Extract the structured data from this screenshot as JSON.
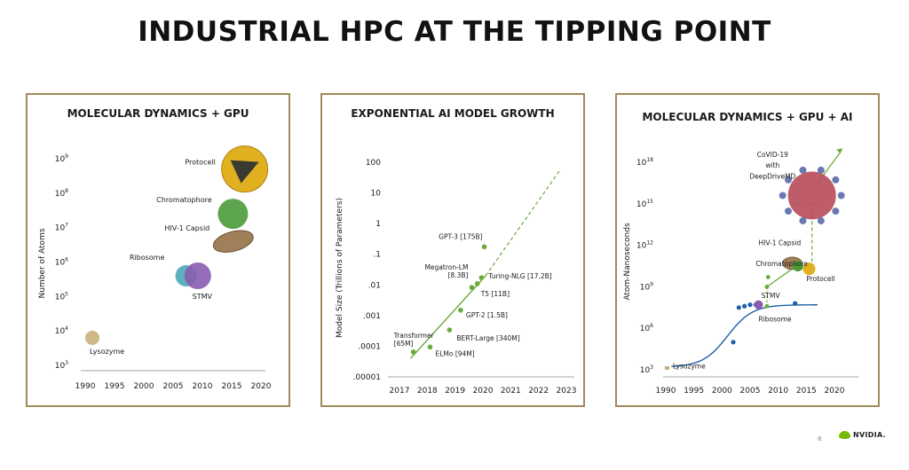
{
  "slide": {
    "title": "INDUSTRIAL HPC AT THE TIPPING POINT",
    "page_number": "8",
    "logo_text": "NVIDIA.",
    "accent_color": "#76b900",
    "border_color": "#a08a5c"
  },
  "chart_data": [
    {
      "type": "scatter",
      "title": "MOLECULAR DYNAMICS + GPU",
      "ylabel": "Number of Atoms",
      "xlabel": "",
      "scale_y": "log",
      "x_ticks": [
        "1990",
        "1995",
        "2000",
        "2005",
        "2010",
        "2015",
        "2020"
      ],
      "y_ticks": [
        {
          "base": "10",
          "exp": "3"
        },
        {
          "base": "10",
          "exp": "4"
        },
        {
          "base": "10",
          "exp": "5"
        },
        {
          "base": "10",
          "exp": "6"
        },
        {
          "base": "10",
          "exp": "7"
        },
        {
          "base": "10",
          "exp": "8"
        },
        {
          "base": "10",
          "exp": "9"
        }
      ],
      "xlim": [
        1990,
        2020
      ],
      "ylim_exp": [
        3,
        9
      ],
      "points": [
        {
          "label": "Lysozyme",
          "x": 1990,
          "y_exp": 3.8,
          "color": "#c9b07a"
        },
        {
          "label": "Ribosome",
          "x": 2006,
          "y_exp": 5.6,
          "color": "#4aa8b8"
        },
        {
          "label": "STMV",
          "x": 2008,
          "y_exp": 5.6,
          "color": "#8a5cb0"
        },
        {
          "label": "HIV-1 Capsid",
          "x": 2013,
          "y_exp": 6.6,
          "color": "#a0805a"
        },
        {
          "label": "Chromatophore",
          "x": 2014,
          "y_exp": 7.4,
          "color": "#4a9a3a"
        },
        {
          "label": "Protocell",
          "x": 2016,
          "y_exp": 8.7,
          "color": "#e0b020"
        }
      ]
    },
    {
      "type": "scatter",
      "title": "EXPONENTIAL AI MODEL GROWTH",
      "ylabel": "Model Size (Trillions of Parameters)",
      "xlabel": "",
      "scale_y": "log",
      "x_ticks": [
        "2017",
        "2018",
        "2019",
        "2020",
        "2021",
        "2022",
        "2023"
      ],
      "y_ticks": [
        ".00001",
        ".0001",
        ".001",
        ".01",
        ".1",
        "1",
        "10",
        "100"
      ],
      "xlim": [
        2017,
        2023
      ],
      "ylim": [
        1e-05,
        100
      ],
      "points": [
        {
          "label": "Transformer [65M]",
          "x": 2017.5,
          "y": 6.5e-05
        },
        {
          "label": "ELMo [94M]",
          "x": 2018.1,
          "y": 9.4e-05
        },
        {
          "label": "BERT-Large [340M]",
          "x": 2018.8,
          "y": 0.00034
        },
        {
          "label": "GPT-2 [1.5B]",
          "x": 2019.2,
          "y": 0.0015
        },
        {
          "label": "Megatron-LM [8.3B]",
          "x": 2019.6,
          "y": 0.0083
        },
        {
          "label": "T5 [11B]",
          "x": 2019.8,
          "y": 0.011
        },
        {
          "label": "Turing-NLG [17.2B]",
          "x": 2019.95,
          "y": 0.0172
        },
        {
          "label": "GPT-3 [175B]",
          "x": 2020.05,
          "y": 0.175
        }
      ],
      "trend": {
        "solid_from": [
          2017.4,
          4e-05
        ],
        "solid_to": [
          2020.1,
          0.02
        ],
        "dashed_to": [
          2022.8,
          60
        ]
      },
      "color": "#6aaa3a"
    },
    {
      "type": "line",
      "title": "MOLECULAR DYNAMICS + GPU + AI",
      "ylabel": "Atom-Nanoseconds",
      "xlabel": "",
      "scale_y": "log",
      "x_ticks": [
        "1990",
        "1995",
        "2000",
        "2005",
        "2010",
        "2015",
        "2020"
      ],
      "y_ticks": [
        {
          "base": "10",
          "exp": "3"
        },
        {
          "base": "10",
          "exp": "6"
        },
        {
          "base": "10",
          "exp": "9"
        },
        {
          "base": "10",
          "exp": "12"
        },
        {
          "base": "10",
          "exp": "15"
        },
        {
          "base": "10",
          "exp": "18"
        }
      ],
      "xlim": [
        1990,
        2020
      ],
      "ylim_exp": [
        3,
        18
      ],
      "blue_points": [
        {
          "x": 2002,
          "y_exp": 5.0
        },
        {
          "x": 2003,
          "y_exp": 7.5
        },
        {
          "x": 2004,
          "y_exp": 7.6
        },
        {
          "x": 2005,
          "y_exp": 7.7
        },
        {
          "x": 2006,
          "y_exp": 7.7
        },
        {
          "x": 2013,
          "y_exp": 7.8
        }
      ],
      "green_points": [
        {
          "x": 2008,
          "y_exp": 9.0
        },
        {
          "x": 2008,
          "y_exp": 7.6
        },
        {
          "x": 2008.2,
          "y_exp": 9.7
        }
      ],
      "labels": [
        {
          "text": "Lysozyme",
          "x": 1990,
          "y_exp": 3.1
        },
        {
          "text": "Ribosome",
          "x": 2006.5,
          "y_exp": 6.5
        },
        {
          "text": "STMV",
          "x": 2007,
          "y_exp": 8.2
        },
        {
          "text": "Protocell",
          "x": 2015,
          "y_exp": 9.4
        },
        {
          "text": "Chromatophore",
          "x": 2006,
          "y_exp": 10.5
        },
        {
          "text": "HIV-1 Capsid",
          "x": 2006.5,
          "y_exp": 12.0
        },
        {
          "text": "CoVID-19",
          "x": 2009,
          "y_exp": 18.4
        },
        {
          "text": "with",
          "x": 2009,
          "y_exp": 17.6
        },
        {
          "text": "DeepDriveMD",
          "x": 2009,
          "y_exp": 16.8
        }
      ],
      "curve_color": "#1f5fa8",
      "ai_color": "#6aaa3a"
    }
  ]
}
